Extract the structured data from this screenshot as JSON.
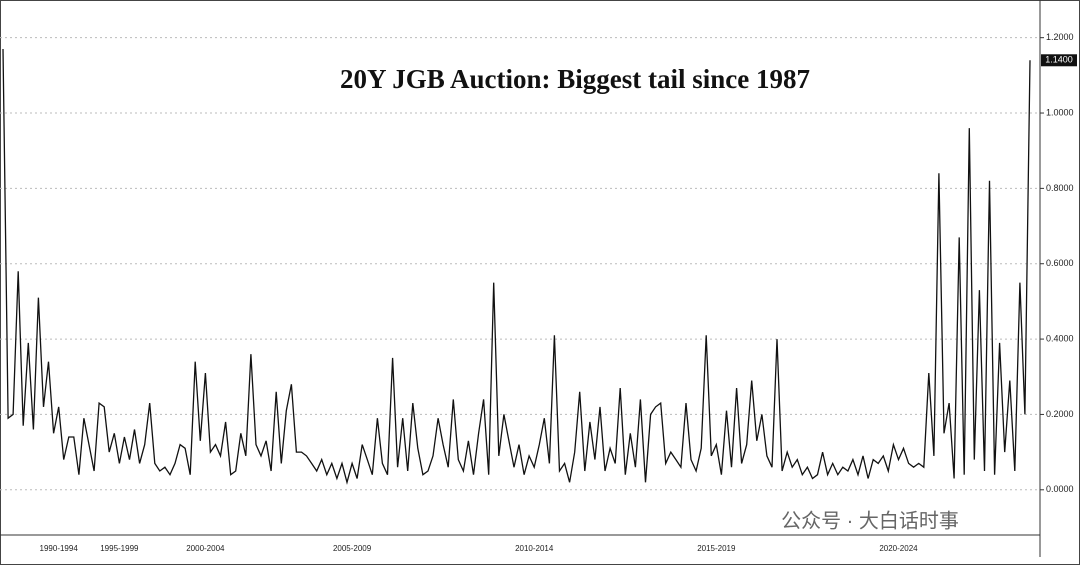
{
  "chart_data": {
    "type": "line",
    "title": "20Y JGB Auction: Biggest tail since 1987",
    "watermark": "公众号 · 大白话时事",
    "color": "#111111",
    "categories": [
      null,
      null,
      null,
      null,
      null,
      null,
      null,
      null,
      null,
      null,
      null,
      "1990-1994",
      null,
      null,
      null,
      null,
      null,
      null,
      null,
      null,
      null,
      null,
      null,
      "1995-1999",
      null,
      null,
      null,
      null,
      null,
      null,
      null,
      null,
      null,
      null,
      null,
      null,
      null,
      null,
      null,
      null,
      "2000-2004",
      null,
      null,
      null,
      null,
      null,
      null,
      null,
      null,
      null,
      null,
      null,
      null,
      null,
      null,
      null,
      null,
      null,
      null,
      null,
      null,
      null,
      null,
      null,
      null,
      null,
      null,
      null,
      null,
      "2005-2009",
      null,
      null,
      null,
      null,
      null,
      null,
      null,
      null,
      null,
      null,
      null,
      null,
      null,
      null,
      null,
      null,
      null,
      null,
      null,
      null,
      null,
      null,
      null,
      null,
      null,
      null,
      null,
      null,
      null,
      null,
      null,
      null,
      null,
      null,
      null,
      "2010-2014",
      null,
      null,
      null,
      null,
      null,
      null,
      null,
      null,
      null,
      null,
      null,
      null,
      null,
      null,
      null,
      null,
      null,
      null,
      null,
      null,
      null,
      null,
      null,
      null,
      null,
      null,
      null,
      null,
      null,
      null,
      null,
      null,
      null,
      null,
      null,
      "2015-2019",
      null,
      null,
      null,
      null,
      null,
      null,
      null,
      null,
      null,
      null,
      null,
      null,
      null,
      null,
      null,
      null,
      null,
      null,
      null,
      null,
      null,
      null,
      null,
      null,
      null,
      null,
      null,
      null,
      null,
      null,
      null,
      null,
      null,
      null,
      null,
      "2020-2024",
      null,
      null,
      null,
      null,
      null,
      null,
      null,
      null,
      null,
      null,
      null,
      null,
      null,
      null,
      null,
      null,
      null,
      null,
      null,
      null,
      null,
      null,
      null,
      null,
      null,
      null
    ],
    "values": [
      1.17,
      0.19,
      0.2,
      0.58,
      0.17,
      0.39,
      0.16,
      0.51,
      0.22,
      0.34,
      0.15,
      0.22,
      0.08,
      0.14,
      0.14,
      0.04,
      0.19,
      0.12,
      0.05,
      0.23,
      0.22,
      0.1,
      0.15,
      0.07,
      0.14,
      0.08,
      0.16,
      0.07,
      0.12,
      0.23,
      0.07,
      0.05,
      0.06,
      0.04,
      0.07,
      0.12,
      0.11,
      0.04,
      0.34,
      0.13,
      0.31,
      0.1,
      0.12,
      0.09,
      0.18,
      0.04,
      0.05,
      0.15,
      0.09,
      0.36,
      0.12,
      0.09,
      0.13,
      0.05,
      0.26,
      0.07,
      0.21,
      0.28,
      0.1,
      0.1,
      0.09,
      0.07,
      0.05,
      0.08,
      0.04,
      0.07,
      0.03,
      0.07,
      0.02,
      0.07,
      0.03,
      0.12,
      0.08,
      0.04,
      0.19,
      0.07,
      0.04,
      0.35,
      0.06,
      0.19,
      0.05,
      0.23,
      0.11,
      0.04,
      0.05,
      0.09,
      0.19,
      0.12,
      0.06,
      0.24,
      0.08,
      0.05,
      0.13,
      0.04,
      0.15,
      0.24,
      0.04,
      0.55,
      0.09,
      0.2,
      0.13,
      0.06,
      0.12,
      0.04,
      0.09,
      0.06,
      0.12,
      0.19,
      0.07,
      0.41,
      0.05,
      0.07,
      0.02,
      0.1,
      0.26,
      0.05,
      0.18,
      0.08,
      0.22,
      0.05,
      0.11,
      0.07,
      0.27,
      0.04,
      0.15,
      0.06,
      0.24,
      0.02,
      0.2,
      0.22,
      0.23,
      0.07,
      0.1,
      0.08,
      0.06,
      0.23,
      0.08,
      0.05,
      0.11,
      0.41,
      0.09,
      0.12,
      0.04,
      0.21,
      0.06,
      0.27,
      0.07,
      0.12,
      0.29,
      0.13,
      0.2,
      0.09,
      0.06,
      0.4,
      0.05,
      0.1,
      0.06,
      0.08,
      0.04,
      0.06,
      0.03,
      0.04,
      0.1,
      0.04,
      0.07,
      0.04,
      0.06,
      0.05,
      0.08,
      0.04,
      0.09,
      0.03,
      0.08,
      0.07,
      0.09,
      0.05,
      0.12,
      0.08,
      0.11,
      0.07,
      0.06,
      0.07,
      0.06,
      0.31,
      0.09,
      0.84,
      0.15,
      0.23,
      0.03,
      0.67,
      0.04,
      0.96,
      0.08,
      0.53,
      0.05,
      0.82,
      0.04,
      0.39,
      0.1,
      0.29,
      0.05,
      0.55,
      0.2,
      1.14
    ],
    "last_value_label": "1.1400",
    "ylim": [
      -0.12,
      1.3
    ],
    "yticks": [
      {
        "value": 0,
        "label": "0.0000"
      },
      {
        "value": 0.2,
        "label": "0.2000"
      },
      {
        "value": 0.4,
        "label": "0.4000"
      },
      {
        "value": 0.6,
        "label": "0.6000"
      },
      {
        "value": 0.8,
        "label": "0.8000"
      },
      {
        "value": 1,
        "label": "1.0000"
      },
      {
        "value": 1.2,
        "label": "1.2000"
      }
    ],
    "grid": true
  }
}
